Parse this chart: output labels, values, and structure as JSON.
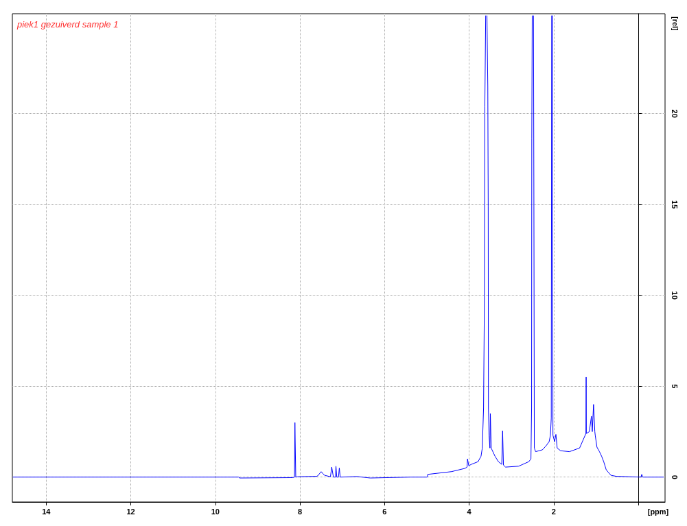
{
  "chart_data": {
    "type": "line",
    "title": "piek1 gezuiverd sample 1",
    "xlabel": "[ppm]",
    "ylabel": "[rel]",
    "xlim": [
      14.8,
      -0.63
    ],
    "ylim": [
      -1.37,
      25.5
    ],
    "xticks": [
      14,
      12,
      10,
      8,
      6,
      4,
      2,
      {
        "value": 0,
        "label": null
      }
    ],
    "yticks": [
      0,
      5,
      10,
      15,
      20
    ],
    "grid": true,
    "line_style": "solid",
    "marker": "none",
    "series": [
      {
        "color": "#0000ff",
        "x": [
          14.79,
          9.45,
          9.43,
          8.17,
          8.13,
          8.12,
          8.1,
          8.06,
          7.61,
          7.58,
          7.5,
          7.42,
          7.28,
          7.25,
          7.21,
          7.16,
          7.15,
          7.13,
          7.09,
          7.07,
          7.05,
          6.65,
          6.34,
          5.38,
          4.99,
          4.98,
          4.42,
          4.1,
          4.05,
          4.04,
          4.01,
          3.95,
          3.79,
          3.72,
          3.69,
          3.66,
          3.64,
          3.63,
          3.61,
          3.595,
          3.58,
          3.56,
          3.55,
          3.545,
          3.53,
          3.51,
          3.5,
          3.48,
          3.39,
          3.31,
          3.23,
          3.21,
          3.19,
          3.14,
          2.83,
          2.59,
          2.54,
          2.525,
          2.52,
          2.51,
          2.495,
          2.48,
          2.47,
          2.46,
          2.43,
          2.35,
          2.27,
          2.19,
          2.11,
          2.08,
          2.06,
          2.05,
          2.04,
          2.03,
          2.02,
          1.98,
          1.95,
          1.92,
          1.84,
          1.63,
          1.39,
          1.24,
          1.235,
          1.23,
          1.22,
          1.16,
          1.11,
          1.09,
          1.06,
          1.03,
          1.02,
          0.98,
          0.92,
          0.87,
          0.82,
          0.76,
          0.65,
          0.52,
          -0.06,
          -0.08,
          -0.1,
          -0.6
        ],
        "values": [
          0,
          0,
          -0.05,
          -0.03,
          0,
          3.0,
          0,
          0.02,
          0.04,
          0.07,
          0.3,
          0.1,
          0.02,
          0.55,
          0,
          0,
          0.6,
          0,
          0,
          0.5,
          0,
          0.03,
          -0.05,
          0,
          0,
          0.15,
          0.3,
          0.48,
          0.55,
          1.0,
          0.63,
          0.7,
          0.85,
          1.15,
          1.6,
          3.8,
          10,
          20.4,
          25.4,
          null,
          25.4,
          21.5,
          14.9,
          3.8,
          2.3,
          1.6,
          3.5,
          1.6,
          1.15,
          0.85,
          0.7,
          2.55,
          0.66,
          0.55,
          0.6,
          0.85,
          1.0,
          3.8,
          18.6,
          25.4,
          null,
          25.4,
          14.9,
          1.6,
          1.4,
          1.45,
          1.5,
          1.7,
          1.95,
          2.3,
          3.25,
          25.4,
          null,
          25.4,
          2.3,
          1.95,
          2.35,
          1.6,
          1.45,
          1.4,
          1.6,
          2.4,
          5.5,
          2.4,
          2.4,
          2.5,
          3.35,
          2.5,
          4.0,
          2.5,
          2.3,
          1.65,
          1.4,
          1.15,
          0.85,
          0.4,
          0.1,
          0.04,
          0,
          0.15,
          0,
          0
        ]
      }
    ]
  }
}
